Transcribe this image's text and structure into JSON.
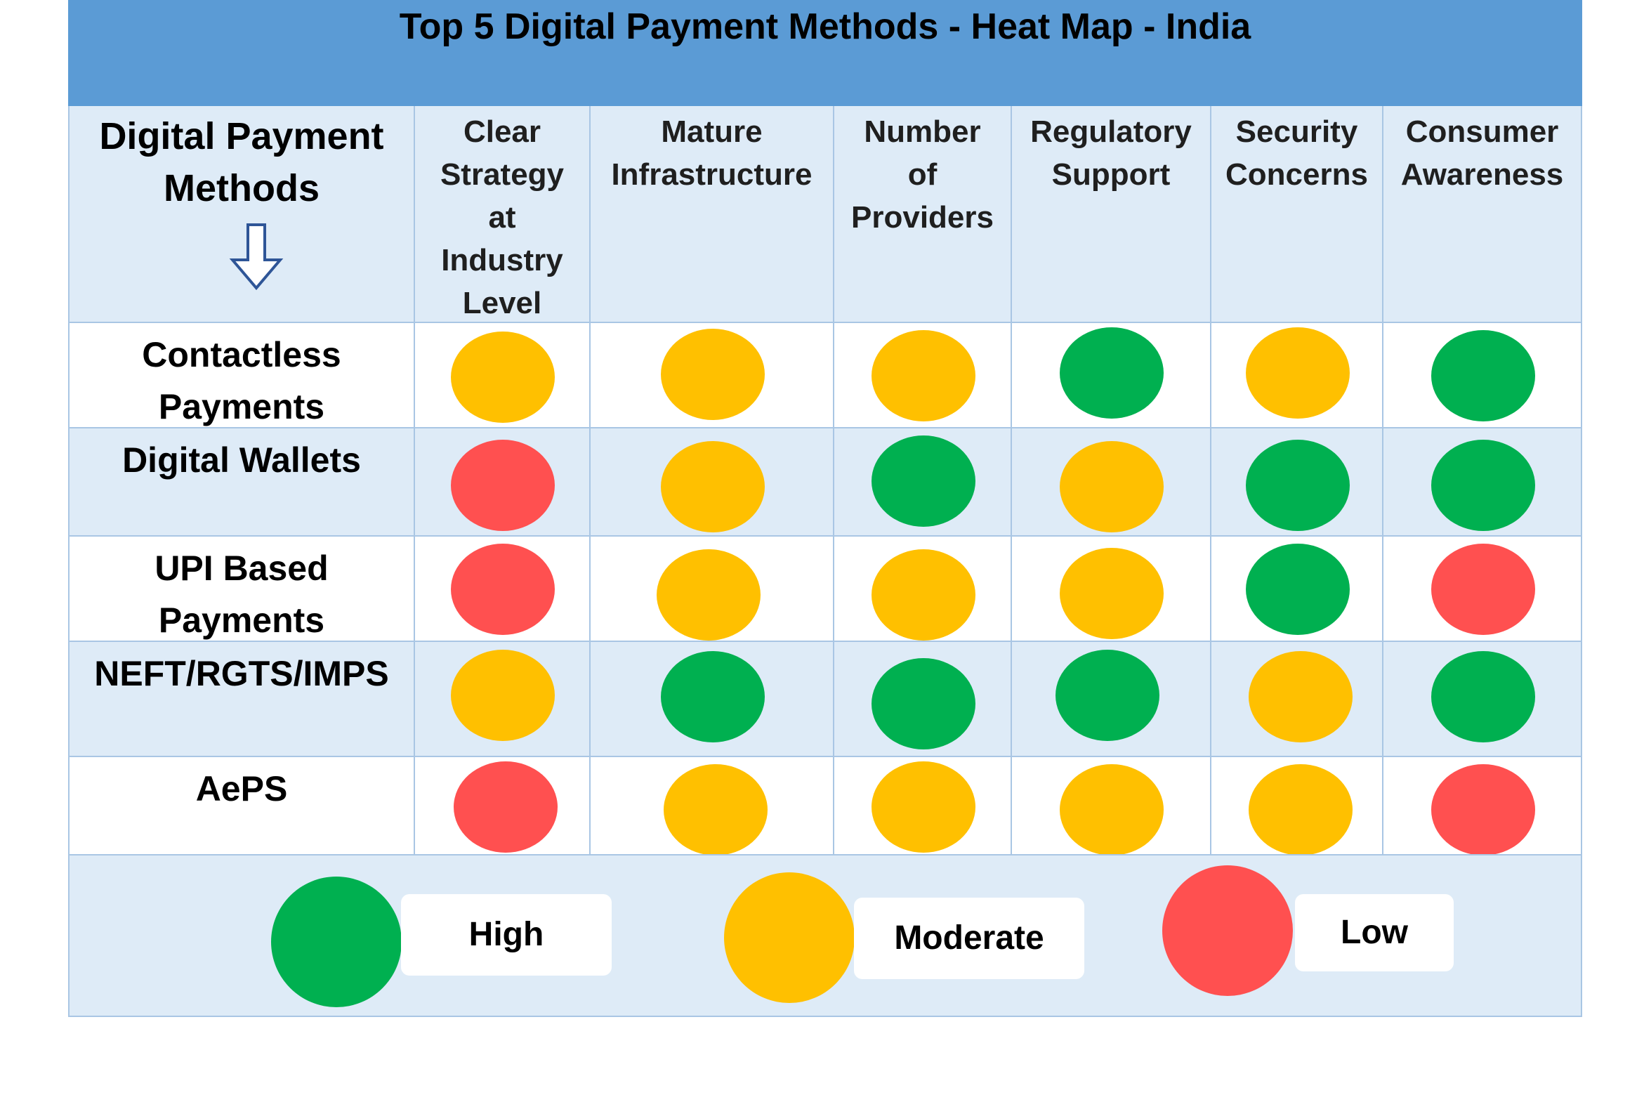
{
  "chart_data": {
    "type": "heatmap",
    "title": "Top 5 Digital Payment Methods - Heat Map - India",
    "row_header": "Digital Payment\nMethods",
    "columns": [
      "Clear\nStrategy\nat\nIndustry\nLevel",
      "Mature\nInfrastructure",
      "Number\nof\nProviders",
      "Regulatory\nSupport",
      "Security\nConcerns",
      "Consumer\nAwareness"
    ],
    "rows": [
      {
        "label": "Contactless\nPayments",
        "values": [
          "Moderate",
          "Moderate",
          "Moderate",
          "High",
          "Moderate",
          "High"
        ]
      },
      {
        "label": "Digital Wallets",
        "values": [
          "Low",
          "Moderate",
          "High",
          "Moderate",
          "High",
          "High"
        ]
      },
      {
        "label": "UPI Based\nPayments",
        "values": [
          "Low",
          "Moderate",
          "Moderate",
          "Moderate",
          "High",
          "Low"
        ]
      },
      {
        "label": "NEFT/RGTS/IMPS",
        "values": [
          "Moderate",
          "High",
          "High",
          "High",
          "Moderate",
          "High"
        ]
      },
      {
        "label": "AePS",
        "values": [
          "Low",
          "Moderate",
          "Moderate",
          "Moderate",
          "Moderate",
          "Low"
        ]
      }
    ],
    "legend": [
      {
        "label": "High",
        "color": "#00b050"
      },
      {
        "label": "Moderate",
        "color": "#ffc000"
      },
      {
        "label": "Low",
        "color": "#ff5050"
      }
    ],
    "colors": {
      "High": "#00b050",
      "Moderate": "#ffc000",
      "Low": "#ff5050"
    },
    "header_bg": "#5b9bd5",
    "band_bg": "#deebf7",
    "white_bg": "#ffffff",
    "arrow_icon": "down-arrow-icon"
  }
}
